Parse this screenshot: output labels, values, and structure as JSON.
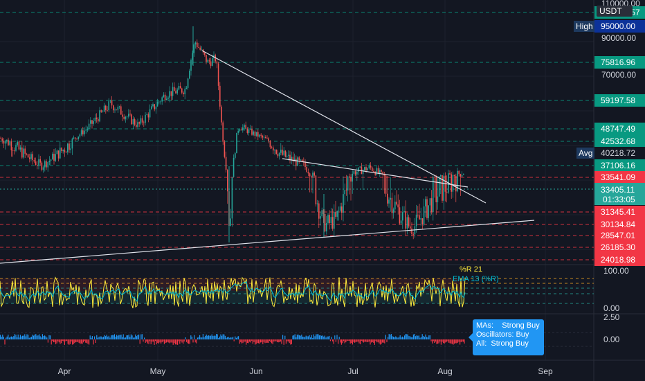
{
  "chart_data": {
    "type": "candlestick",
    "currency": "USDT",
    "x_ticks": [
      "Apr",
      "May",
      "Jun",
      "Jul",
      "Aug",
      "Sep"
    ],
    "y_ticks": [
      {
        "value": "110000.00",
        "y": 110000
      },
      {
        "value": "95000.00",
        "y": 95000
      },
      {
        "value": "90000.00",
        "y": 90000
      },
      {
        "value": "70000.00",
        "y": 70000
      }
    ],
    "price_levels": [
      {
        "label": "103947.57",
        "value": 103947.57,
        "color": "#089981"
      },
      {
        "label": "75816.96",
        "value": 75816.96,
        "color": "#089981"
      },
      {
        "label": "59197.58",
        "value": 59197.58,
        "color": "#089981"
      },
      {
        "label": "48747.49",
        "value": 48747.49,
        "color": "#089981"
      },
      {
        "label": "42532.68",
        "value": 42532.68,
        "color": "#089981"
      },
      {
        "label": "37106.16",
        "value": 37106.16,
        "color": "#089981"
      },
      {
        "label": "33541.09",
        "value": 33541.09,
        "color": "#f23645"
      },
      {
        "label": "31345.41",
        "value": 31345.41,
        "color": "#f23645"
      },
      {
        "label": "30134.84",
        "value": 30134.84,
        "color": "#f23645"
      },
      {
        "label": "28547.01",
        "value": 28547.01,
        "color": "#f23645"
      },
      {
        "label": "26185.30",
        "value": 26185.3,
        "color": "#f23645"
      },
      {
        "label": "24018.98",
        "value": 24018.98,
        "color": "#f23645"
      }
    ],
    "high": {
      "label": "High",
      "value": "95000.00"
    },
    "avg": {
      "label": "Avg",
      "value": "40218.72"
    },
    "last_price": {
      "value": "33405.11",
      "countdown": "01:33:05",
      "color": "#26a69a"
    },
    "trendlines": [
      {
        "from": [
          "May 12",
          81000
        ],
        "to": [
          "Aug 8",
          32000
        ]
      },
      {
        "from": [
          "Jun 7",
          39000
        ],
        "to": [
          "Aug 6",
          34000
        ]
      },
      {
        "from": [
          "Mar 15",
          24000
        ],
        "to": [
          "Aug 16",
          30700
        ]
      }
    ],
    "williams_r": {
      "title": "%R 21",
      "ema_label": "EMA 13 (%R)",
      "y_ticks": [
        "100.00",
        "0.00"
      ],
      "colors": {
        "r": "#ffeb3b",
        "ema": "#00bcd4"
      }
    },
    "histogram": {
      "y_ticks": [
        "2.50",
        "0.00"
      ],
      "colors": {
        "up": "#2196f3",
        "down": "#f23645"
      }
    }
  },
  "summary": {
    "mas_label": "MAs:",
    "mas_value": "Strong Buy",
    "osc_label": "Oscillators:",
    "osc_value": "Buy",
    "all_label": "All:",
    "all_value": "Strong Buy"
  }
}
